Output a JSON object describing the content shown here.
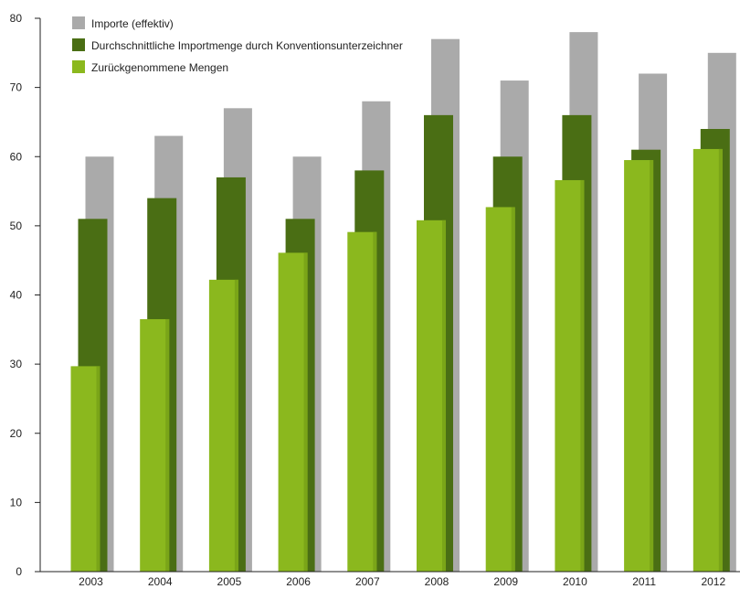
{
  "chart_data": {
    "type": "bar",
    "categories": [
      "2003",
      "2004",
      "2005",
      "2006",
      "2007",
      "2008",
      "2009",
      "2010",
      "2011",
      "2012"
    ],
    "series": [
      {
        "name": "Importe (effektiv)",
        "color": "#aaaaaa",
        "values": [
          60,
          63,
          67,
          60,
          68,
          77,
          71,
          78,
          72,
          75
        ]
      },
      {
        "name": "Durchschnittliche Importmenge durch Konventionsunterzeichner",
        "color": "#4a6e14",
        "values": [
          51,
          54,
          57,
          51,
          58,
          66,
          60,
          66,
          61,
          64
        ]
      },
      {
        "name": "Zurückgenommene Mengen",
        "color": "#8bb81e",
        "values": [
          29.7,
          36.5,
          42.2,
          46.1,
          49.1,
          50.8,
          52.7,
          56.6,
          59.5,
          61.1
        ]
      }
    ],
    "ylim": [
      0,
      80
    ],
    "yticks": [
      0,
      10,
      20,
      30,
      40,
      50,
      60,
      70,
      80
    ],
    "legend_position": "top-left",
    "grid": false
  }
}
